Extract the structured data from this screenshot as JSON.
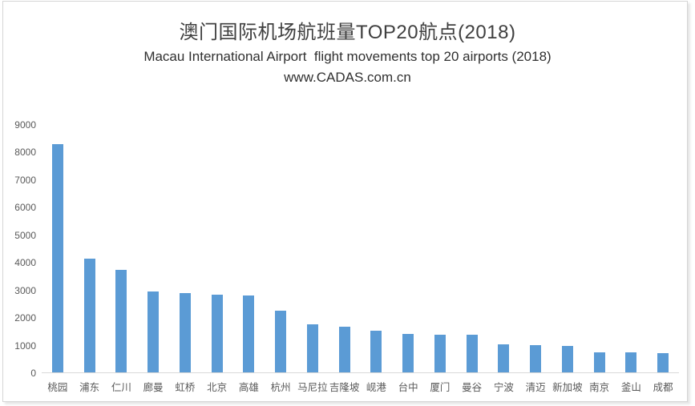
{
  "header": {
    "title_zh": "澳门国际机场航班量TOP20航点(2018)",
    "title_en": "Macau International Airport  flight movements top 20 airports (2018)",
    "website": "www.CADAS.com.cn"
  },
  "colors": {
    "bar": "#5B9BD5",
    "axis_line": "#D9D9D9",
    "tick_text": "#595959",
    "title_text": "#3F3F3F",
    "frame_border": "#D5D5D5",
    "background": "#FFFFFF"
  },
  "chart_data": {
    "type": "bar",
    "title": "澳门国际机场航班量TOP20航点(2018)",
    "subtitle": "Macau International Airport  flight movements top 20 airports (2018)",
    "watermark": "www.CADAS.com.cn",
    "categories": [
      "桃园",
      "浦东",
      "仁川",
      "廊曼",
      "虹桥",
      "北京",
      "高雄",
      "杭州",
      "马尼拉",
      "吉隆坡",
      "岘港",
      "台中",
      "厦门",
      "曼谷",
      "宁波",
      "清迈",
      "新加坡",
      "南京",
      "釜山",
      "成都"
    ],
    "values": [
      8300,
      4150,
      3740,
      2950,
      2870,
      2830,
      2810,
      2250,
      1760,
      1660,
      1520,
      1400,
      1360,
      1370,
      1030,
      1000,
      950,
      730,
      720,
      710
    ],
    "xlabel": "",
    "ylabel": "",
    "ylim": [
      0,
      9000
    ],
    "yticks": [
      0,
      1000,
      2000,
      3000,
      4000,
      5000,
      6000,
      7000,
      8000,
      9000
    ],
    "grid": false,
    "legend": false,
    "bar_color": "#5B9BD5"
  }
}
